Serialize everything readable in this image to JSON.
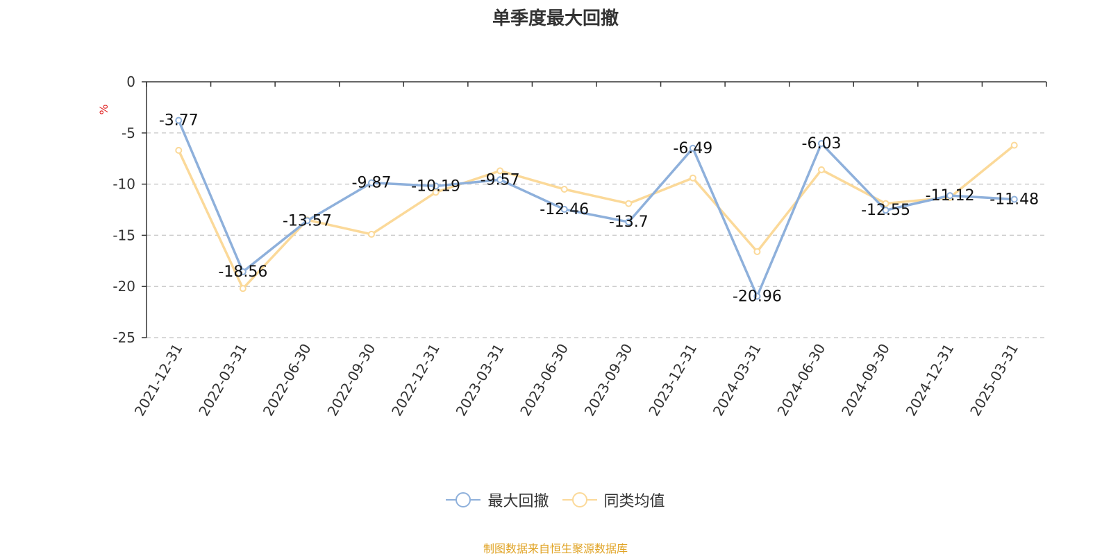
{
  "chart_data": {
    "type": "line",
    "title": "单季度最大回撤",
    "unit_label": "%",
    "ylim": [
      -25,
      0
    ],
    "yticks": [
      0,
      -5,
      -10,
      -15,
      -20,
      -25
    ],
    "grid": "dashed horizontal",
    "legend_position": "bottom-center",
    "categories": [
      "2021-12-31",
      "2022-03-31",
      "2022-06-30",
      "2022-09-30",
      "2022-12-31",
      "2023-03-31",
      "2023-06-30",
      "2023-09-30",
      "2023-12-31",
      "2024-03-31",
      "2024-06-30",
      "2024-09-30",
      "2024-12-31",
      "2025-03-31"
    ],
    "series": [
      {
        "name": "最大回撤",
        "color": "#8eb0db",
        "values": [
          -3.77,
          -18.56,
          -13.57,
          -9.87,
          -10.19,
          -9.57,
          -12.46,
          -13.7,
          -6.49,
          -20.96,
          -6.03,
          -12.55,
          -11.12,
          -11.48
        ],
        "labels": [
          "-3.77",
          "-18.56",
          "-13.57",
          "-9.87",
          "-10.19",
          "-9.57",
          "-12.46",
          "-13.7",
          "-6.49",
          "-20.96",
          "-6.03",
          "-12.55",
          "-11.12",
          "-11.48"
        ]
      },
      {
        "name": "同类均值",
        "color": "#fbd999",
        "values": [
          -6.7,
          -20.2,
          -13.5,
          -14.9,
          -10.8,
          -8.7,
          -10.5,
          -11.9,
          -9.4,
          -16.6,
          -8.6,
          -11.9,
          -11.3,
          -6.2
        ]
      }
    ]
  },
  "source_text": "制图数据来自恒生聚源数据库",
  "source_color": "#e0a324",
  "unit_color": "#e02020"
}
